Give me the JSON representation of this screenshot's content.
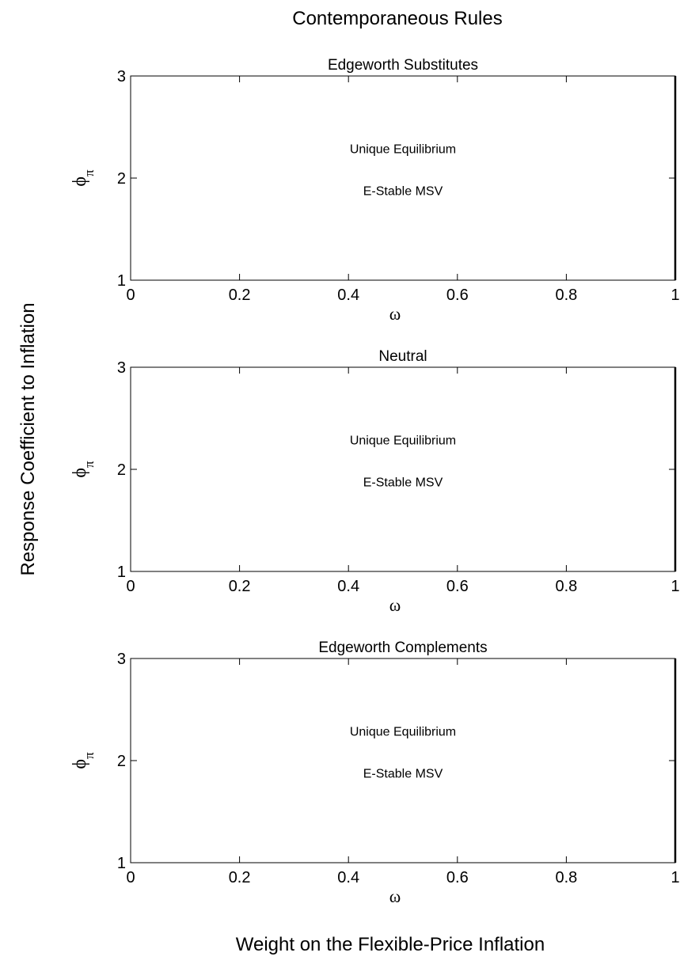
{
  "figure": {
    "title": "Contemporaneous Rules",
    "ylabel": "Response Coefficient to Inflation",
    "xlabel": "Weight on the Flexible-Price Inflation"
  },
  "chart_data": [
    {
      "type": "scatter",
      "title": "Edgeworth Substitutes",
      "xlabel": "ω",
      "ylabel_symbol": "ϕ",
      "ylabel_subscript": "π",
      "xlim": [
        0,
        1
      ],
      "ylim": [
        1,
        3
      ],
      "x_ticks": [
        0,
        0.2,
        0.4,
        0.6,
        0.8,
        1
      ],
      "x_tick_labels": [
        "0",
        "0.2",
        "0.4",
        "0.6",
        "0.8",
        "1"
      ],
      "y_ticks": [
        1,
        2,
        3
      ],
      "y_tick_labels": [
        "1",
        "2",
        "3"
      ],
      "series": [],
      "annotations": [
        {
          "text": "Unique Equilibrium",
          "x": 0.5,
          "y": 2.29
        },
        {
          "text": "E-Stable MSV",
          "x": 0.5,
          "y": 1.88
        }
      ]
    },
    {
      "type": "scatter",
      "title": "Neutral",
      "xlabel": "ω",
      "ylabel_symbol": "ϕ",
      "ylabel_subscript": "π",
      "xlim": [
        0,
        1
      ],
      "ylim": [
        1,
        3
      ],
      "x_ticks": [
        0,
        0.2,
        0.4,
        0.6,
        0.8,
        1
      ],
      "x_tick_labels": [
        "0",
        "0.2",
        "0.4",
        "0.6",
        "0.8",
        "1"
      ],
      "y_ticks": [
        1,
        2,
        3
      ],
      "y_tick_labels": [
        "1",
        "2",
        "3"
      ],
      "series": [],
      "annotations": [
        {
          "text": "Unique Equilibrium",
          "x": 0.5,
          "y": 2.29
        },
        {
          "text": "E-Stable MSV",
          "x": 0.5,
          "y": 1.88
        }
      ]
    },
    {
      "type": "scatter",
      "title": "Edgeworth Complements",
      "xlabel": "ω",
      "ylabel_symbol": "ϕ",
      "ylabel_subscript": "π",
      "xlim": [
        0,
        1
      ],
      "ylim": [
        1,
        3
      ],
      "x_ticks": [
        0,
        0.2,
        0.4,
        0.6,
        0.8,
        1
      ],
      "x_tick_labels": [
        "0",
        "0.2",
        "0.4",
        "0.6",
        "0.8",
        "1"
      ],
      "y_ticks": [
        1,
        2,
        3
      ],
      "y_tick_labels": [
        "1",
        "2",
        "3"
      ],
      "series": [],
      "annotations": [
        {
          "text": "Unique Equilibrium",
          "x": 0.5,
          "y": 2.29
        },
        {
          "text": "E-Stable MSV",
          "x": 0.5,
          "y": 1.88
        }
      ]
    }
  ]
}
